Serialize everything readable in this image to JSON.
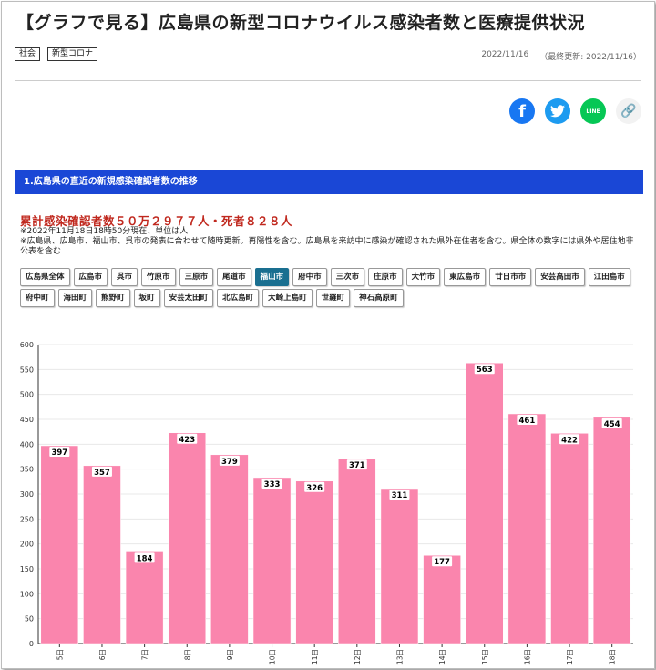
{
  "article": {
    "title": "【グラフで見る】広島県の新型コロナウイルス感染者数と医療提供状況",
    "tags": [
      "社会",
      "新型コロナ"
    ],
    "date": "2022/11/16",
    "updated": "（最終更新: 2022/11/16）"
  },
  "share": {
    "facebook_icon": "f",
    "twitter_icon": "twitter-bird",
    "line_icon": "LINE",
    "link_icon": "🔗"
  },
  "section": {
    "heading": "1.広島県の直近の新規感染確認者数の推移",
    "summary": "累計感染確認者数５０万２９７７人・死者８２８人",
    "note1": "※2022年11月18日18時50分現在、単位は人",
    "note2": "※広島県、広島市、福山市、呉市の発表に合わせて随時更新。再陽性を含む。広島県を来訪中に感染が確認された県外在住者を含む。県全体の数字には県外や居住地非公表を含む"
  },
  "cities": [
    "広島県全体",
    "広島市",
    "呉市",
    "竹原市",
    "三原市",
    "尾道市",
    "福山市",
    "府中市",
    "三次市",
    "庄原市",
    "大竹市",
    "東広島市",
    "廿日市市",
    "安芸高田市",
    "江田島市",
    "府中町",
    "海田町",
    "熊野町",
    "坂町",
    "安芸太田町",
    "北広島町",
    "大崎上島町",
    "世羅町",
    "神石高原町"
  ],
  "selected_city": "福山市",
  "chart_data": {
    "type": "bar",
    "categories": [
      "5日",
      "6日",
      "7日",
      "8日",
      "9日",
      "10日",
      "11日",
      "12日",
      "13日",
      "14日",
      "15日",
      "16日",
      "17日",
      "18日"
    ],
    "values": [
      397,
      357,
      184,
      423,
      379,
      333,
      326,
      371,
      311,
      177,
      563,
      461,
      422,
      454
    ],
    "ylim": [
      0,
      600
    ],
    "yticks": [
      0,
      50,
      100,
      150,
      200,
      250,
      300,
      350,
      400,
      450,
      500,
      550,
      600
    ],
    "bar_color": "#fa85ad",
    "grid": true
  }
}
